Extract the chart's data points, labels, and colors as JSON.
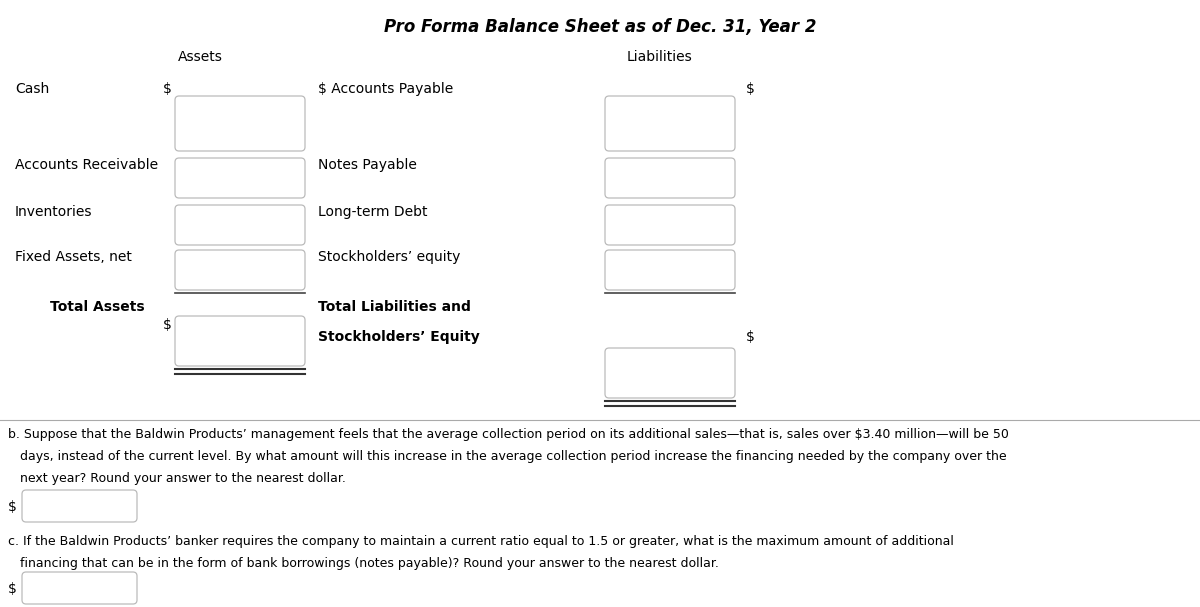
{
  "title": "Pro Forma Balance Sheet as of Dec. 31, Year 2",
  "assets_header": "Assets",
  "liabilities_header": "Liabilities",
  "bg_color": "#ffffff",
  "box_edge_color": "#bbbbbb",
  "box_fill_color": "#ffffff",
  "text_color": "#000000",
  "font_size": 10,
  "title_font_size": 12,
  "header_font_size": 10,
  "question_b_line1": "b. Suppose that the Baldwin Products’ management feels that the average collection period on its additional sales—that is, sales over $3.40 million—will be 50",
  "question_b_line2": "   days, instead of the current level. By what amount will this increase in the average collection period increase the financing needed by the company over the",
  "question_b_line3": "   next year? Round your answer to the nearest dollar.",
  "question_c_line1": "c. If the Baldwin Products’ banker requires the company to maintain a current ratio equal to 1.5 or greater, what is the maximum amount of additional",
  "question_c_line2": "   financing that can be in the form of bank borrowings (notes payable)? Round your answer to the nearest dollar."
}
